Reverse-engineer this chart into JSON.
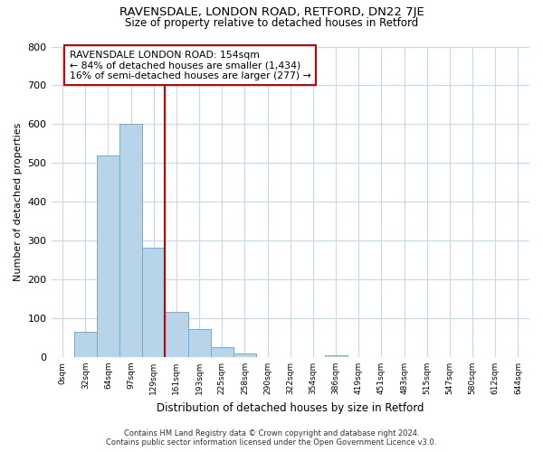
{
  "title": "RAVENSDALE, LONDON ROAD, RETFORD, DN22 7JE",
  "subtitle": "Size of property relative to detached houses in Retford",
  "xlabel": "Distribution of detached houses by size in Retford",
  "ylabel": "Number of detached properties",
  "bar_labels": [
    "0sqm",
    "32sqm",
    "64sqm",
    "97sqm",
    "129sqm",
    "161sqm",
    "193sqm",
    "225sqm",
    "258sqm",
    "290sqm",
    "322sqm",
    "354sqm",
    "386sqm",
    "419sqm",
    "451sqm",
    "483sqm",
    "515sqm",
    "547sqm",
    "580sqm",
    "612sqm",
    "644sqm"
  ],
  "bar_values": [
    0,
    65,
    520,
    600,
    282,
    117,
    73,
    25,
    10,
    0,
    0,
    0,
    5,
    0,
    0,
    0,
    0,
    0,
    0,
    0,
    0
  ],
  "bar_color": "#b8d4e8",
  "bar_edge_color": "#7aaac8",
  "vline_color": "#cc0000",
  "vline_label_title": "RAVENSDALE LONDON ROAD: 154sqm",
  "vline_label_line1": "← 84% of detached houses are smaller (1,434)",
  "vline_label_line2": "16% of semi-detached houses are larger (277) →",
  "annotation_box_edge_color": "#cc0000",
  "ylim": [
    0,
    800
  ],
  "yticks": [
    0,
    100,
    200,
    300,
    400,
    500,
    600,
    700,
    800
  ],
  "footer_line1": "Contains HM Land Registry data © Crown copyright and database right 2024.",
  "footer_line2": "Contains public sector information licensed under the Open Government Licence v3.0.",
  "background_color": "#ffffff",
  "grid_color": "#c8d8e8"
}
